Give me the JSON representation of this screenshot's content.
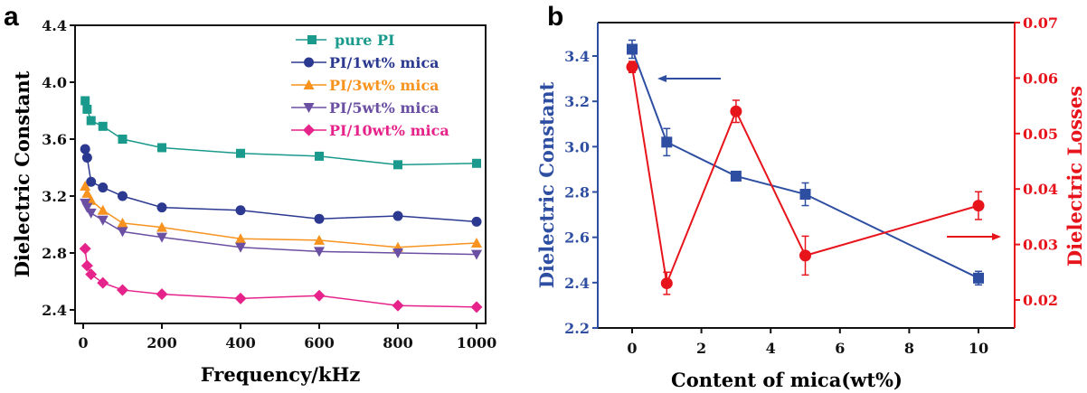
{
  "chart_data": [
    {
      "panel": "a",
      "type": "line",
      "title": "",
      "xlabel": "Frequency/kHz",
      "ylabel": "Dielectric Constant",
      "xlim": [
        -20,
        1025
      ],
      "ylim": [
        2.3,
        4.4
      ],
      "xticks": [
        0,
        200,
        400,
        600,
        800,
        1000
      ],
      "yticks": [
        2.4,
        2.8,
        3.2,
        3.6,
        4.0,
        4.4
      ],
      "ytick_labels": [
        "2.4",
        "2.8",
        "3.2",
        "3.6",
        "4.0",
        "4.4"
      ],
      "legend_position": "top-right",
      "x": [
        5,
        10,
        20,
        50,
        100,
        200,
        400,
        600,
        800,
        1000
      ],
      "series": [
        {
          "name": "pure PI",
          "marker": "square",
          "color": "#1a9a8c",
          "values": [
            3.87,
            3.81,
            3.73,
            3.69,
            3.6,
            3.54,
            3.5,
            3.48,
            3.42,
            3.43
          ]
        },
        {
          "name": "PI/1wt% mica",
          "marker": "circle",
          "color": "#2b3990",
          "values": [
            3.53,
            3.47,
            3.3,
            3.26,
            3.2,
            3.12,
            3.1,
            3.04,
            3.06,
            3.02
          ]
        },
        {
          "name": "PI/3wt% mica",
          "marker": "triangle-up",
          "color": "#f7931e",
          "values": [
            3.27,
            3.22,
            3.17,
            3.1,
            3.01,
            2.98,
            2.9,
            2.89,
            2.84,
            2.87
          ]
        },
        {
          "name": "PI/5wt% mica",
          "marker": "triangle-down",
          "color": "#6a4fa3",
          "values": [
            3.15,
            3.12,
            3.08,
            3.03,
            2.95,
            2.91,
            2.84,
            2.81,
            2.8,
            2.79
          ]
        },
        {
          "name": "PI/10wt% mica",
          "marker": "diamond",
          "color": "#e6238a",
          "values": [
            2.83,
            2.71,
            2.65,
            2.59,
            2.54,
            2.51,
            2.48,
            2.5,
            2.43,
            2.42
          ]
        }
      ]
    },
    {
      "panel": "b",
      "type": "line",
      "title": "",
      "xlabel": "Content of mica(wt%)",
      "ylabel": "Dielectric Constant",
      "y2label": "Dielectric Losses",
      "xlim": [
        -1,
        11
      ],
      "ylim": [
        2.2,
        3.55
      ],
      "y2lim": [
        0.0145,
        0.07
      ],
      "xticks": [
        0,
        2,
        4,
        6,
        8,
        10
      ],
      "yticks": [
        2.2,
        2.4,
        2.6,
        2.8,
        3.0,
        3.2,
        3.4
      ],
      "ytick_labels": [
        "2.2",
        "2.4",
        "2.6",
        "2.8",
        "3.0",
        "3.2",
        "3.4"
      ],
      "y2ticks": [
        0.02,
        0.03,
        0.04,
        0.05,
        0.06,
        0.07
      ],
      "y2tick_labels": [
        "0.02",
        "0.03",
        "0.04",
        "0.05",
        "0.06",
        "0.07"
      ],
      "x": [
        0,
        1,
        3,
        5,
        10
      ],
      "series": [
        {
          "name": "Dielectric Constant",
          "axis": "left",
          "marker": "square",
          "color": "#2e4ea2",
          "values": [
            3.43,
            3.02,
            2.87,
            2.79,
            2.42
          ],
          "errors": [
            0.04,
            0.06,
            0.02,
            0.05,
            0.03
          ]
        },
        {
          "name": "Dielectric Losses",
          "axis": "right",
          "marker": "circle",
          "color": "#e8141c",
          "values": [
            0.062,
            0.023,
            0.054,
            0.028,
            0.037
          ],
          "errors": [
            0.001,
            0.002,
            0.002,
            0.0035,
            0.0025
          ]
        }
      ],
      "annotations": [
        "arrow pointing left (Dielectric Constant axis)",
        "arrow pointing right (Dielectric Losses axis)"
      ]
    }
  ],
  "panels": {
    "a": {
      "letter": "a"
    },
    "b": {
      "letter": "b"
    }
  }
}
